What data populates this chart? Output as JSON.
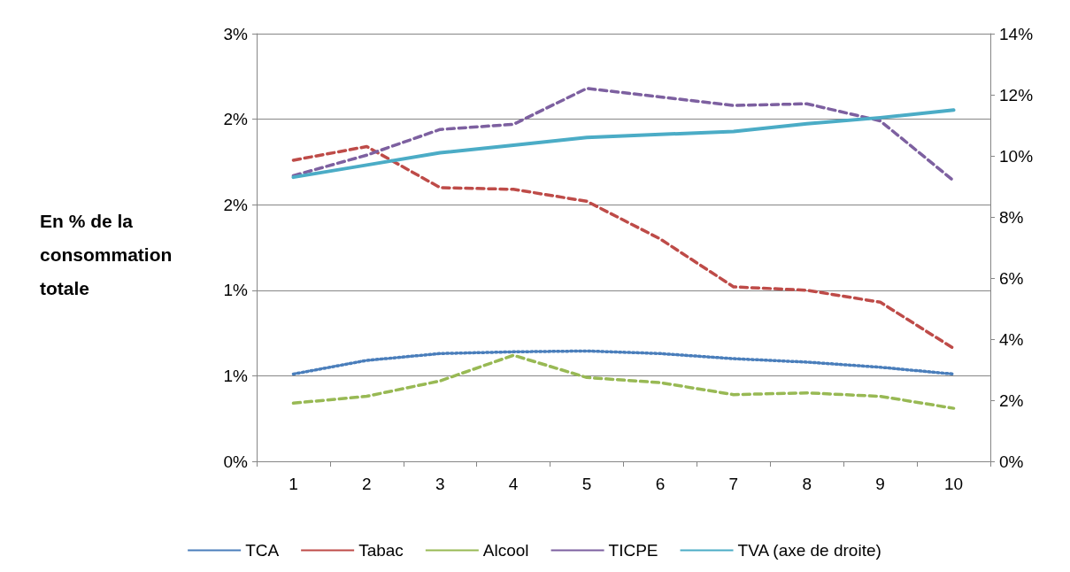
{
  "chart_data": {
    "type": "line",
    "ylabel": "En % de la consommation totale",
    "categories": [
      "1",
      "2",
      "3",
      "4",
      "5",
      "6",
      "7",
      "8",
      "9",
      "10"
    ],
    "series": [
      {
        "name": "TCA",
        "color": "#4a7ebb",
        "line_style": "dotted",
        "values": [
          0.51,
          0.59,
          0.63,
          0.64,
          0.645,
          0.63,
          0.6,
          0.58,
          0.55,
          0.51
        ]
      },
      {
        "name": "Tabac",
        "color": "#be4b48",
        "line_style": "dashed",
        "values": [
          1.76,
          1.84,
          1.6,
          1.59,
          1.52,
          1.3,
          1.02,
          1.0,
          0.93,
          0.66
        ]
      },
      {
        "name": "Alcool",
        "color": "#98b954",
        "line_style": "dashed",
        "values": [
          0.34,
          0.38,
          0.47,
          0.62,
          0.49,
          0.46,
          0.39,
          0.4,
          0.38,
          0.31
        ]
      },
      {
        "name": "TICPE",
        "color": "#7d60a0",
        "line_style": "dashed",
        "values": [
          1.67,
          1.79,
          1.94,
          1.97,
          2.18,
          2.13,
          2.08,
          2.09,
          1.99,
          1.64
        ]
      },
      {
        "name": "TVA (axe de droite)",
        "color": "#4bacc6",
        "line_style": "solid",
        "axis": "y2",
        "values": [
          9.3,
          9.7,
          10.1,
          10.35,
          10.6,
          10.7,
          10.8,
          11.05,
          11.25,
          11.5
        ]
      }
    ],
    "ylim": [
      0,
      2.5
    ],
    "yticks": [
      {
        "value": 0,
        "label": "0%"
      },
      {
        "value": 0.5,
        "label": "1%"
      },
      {
        "value": 1,
        "label": "1%"
      },
      {
        "value": 1.5,
        "label": "2%"
      },
      {
        "value": 2,
        "label": "2%"
      },
      {
        "value": 2.5,
        "label": "3%"
      }
    ],
    "y2lim": [
      0,
      14
    ],
    "y2ticks": [
      {
        "value": 0,
        "label": "0%"
      },
      {
        "value": 2,
        "label": "2%"
      },
      {
        "value": 4,
        "label": "4%"
      },
      {
        "value": 6,
        "label": "6%"
      },
      {
        "value": 8,
        "label": "8%"
      },
      {
        "value": 10,
        "label": "10%"
      },
      {
        "value": 12,
        "label": "12%"
      },
      {
        "value": 14,
        "label": "14%"
      }
    ],
    "grid": "y",
    "legend": "bottom",
    "marker": "none"
  }
}
